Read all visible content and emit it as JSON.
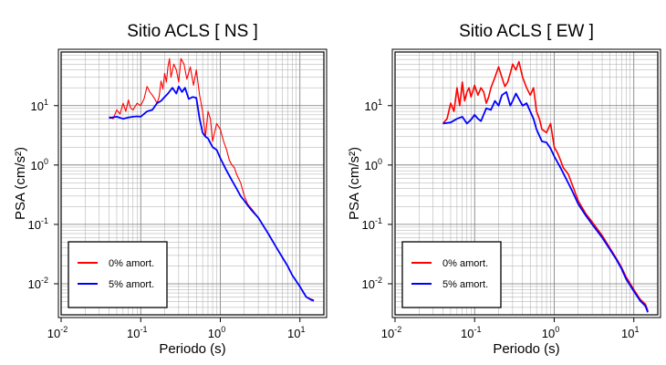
{
  "chart_data": [
    {
      "type": "line",
      "title": "Sitio ACLS [ NS ]",
      "xlabel": "Periodo (s)",
      "ylabel": "PSA (cm/s²)",
      "x_scale": "log",
      "y_scale": "log",
      "xlim": [
        0.01,
        20
      ],
      "ylim": [
        0.003,
        80
      ],
      "x_ticks": [
        {
          "base": "10",
          "exp": "-2"
        },
        {
          "base": "10",
          "exp": "-1"
        },
        {
          "base": "10",
          "exp": "0"
        },
        {
          "base": "10",
          "exp": "1"
        }
      ],
      "y_ticks": [
        {
          "base": "10",
          "exp": "-2"
        },
        {
          "base": "10",
          "exp": "-1"
        },
        {
          "base": "10",
          "exp": "0"
        },
        {
          "base": "10",
          "exp": "1"
        }
      ],
      "grid": true,
      "legend_position": "bottom-left",
      "series": [
        {
          "name": "0% amort.",
          "color": "#ff0000",
          "x": [
            0.04,
            0.045,
            0.05,
            0.055,
            0.06,
            0.065,
            0.07,
            0.075,
            0.08,
            0.09,
            0.1,
            0.11,
            0.12,
            0.13,
            0.14,
            0.15,
            0.16,
            0.17,
            0.18,
            0.19,
            0.2,
            0.21,
            0.22,
            0.23,
            0.24,
            0.26,
            0.28,
            0.3,
            0.32,
            0.35,
            0.38,
            0.42,
            0.46,
            0.5,
            0.55,
            0.6,
            0.65,
            0.7,
            0.75,
            0.8,
            0.9,
            1.0,
            1.1,
            1.2,
            1.3,
            1.4,
            1.5,
            1.6,
            1.8,
            2.0,
            2.2,
            2.5,
            3,
            4,
            5,
            6,
            7,
            8,
            10,
            12,
            14,
            15
          ],
          "y": [
            6.5,
            6.0,
            8.5,
            7.2,
            11.0,
            8.0,
            12.5,
            9.0,
            8.5,
            11.0,
            10.0,
            13.0,
            21.0,
            17.0,
            15.0,
            13.0,
            11.0,
            14.0,
            26.0,
            19.0,
            35.0,
            25.0,
            45.0,
            62.0,
            30.0,
            50.0,
            40.0,
            25.0,
            62.0,
            50.0,
            28.0,
            45.0,
            22.0,
            40.0,
            15.0,
            8.0,
            3.0,
            8.0,
            6.0,
            2.5,
            5.0,
            4.0,
            2.5,
            1.8,
            1.2,
            1.0,
            0.9,
            0.7,
            0.5,
            0.3,
            0.22,
            0.18,
            0.13,
            0.07,
            0.042,
            0.028,
            0.02,
            0.014,
            0.009,
            0.006,
            0.0055,
            0.0053
          ]
        },
        {
          "name": "5% amort.",
          "color": "#0000ff",
          "x": [
            0.04,
            0.05,
            0.06,
            0.07,
            0.08,
            0.09,
            0.1,
            0.12,
            0.14,
            0.16,
            0.18,
            0.2,
            0.22,
            0.25,
            0.28,
            0.3,
            0.33,
            0.36,
            0.4,
            0.45,
            0.5,
            0.55,
            0.6,
            0.65,
            0.7,
            0.8,
            0.9,
            1.0,
            1.2,
            1.4,
            1.6,
            1.8,
            2.0,
            2.2,
            2.5,
            3,
            4,
            5,
            6,
            7,
            8,
            10,
            12,
            14,
            15
          ],
          "y": [
            6.2,
            6.5,
            6.0,
            6.3,
            6.5,
            6.6,
            6.5,
            8.0,
            8.5,
            11.0,
            12.0,
            14.0,
            16.0,
            20.0,
            16.0,
            21.0,
            17.0,
            20.0,
            13.0,
            14.0,
            13.5,
            6.0,
            3.5,
            3.0,
            2.8,
            2.0,
            1.8,
            1.3,
            0.8,
            0.55,
            0.4,
            0.3,
            0.25,
            0.21,
            0.17,
            0.13,
            0.07,
            0.042,
            0.028,
            0.02,
            0.014,
            0.009,
            0.006,
            0.0053,
            0.0052
          ]
        }
      ]
    },
    {
      "type": "line",
      "title": "Sitio ACLS [ EW ]",
      "xlabel": "Periodo (s)",
      "ylabel": "PSA (cm/s²)",
      "x_scale": "log",
      "y_scale": "log",
      "xlim": [
        0.01,
        20
      ],
      "ylim": [
        0.003,
        80
      ],
      "x_ticks": [
        {
          "base": "10",
          "exp": "-2"
        },
        {
          "base": "10",
          "exp": "-1"
        },
        {
          "base": "10",
          "exp": "0"
        },
        {
          "base": "10",
          "exp": "1"
        }
      ],
      "y_ticks": [
        {
          "base": "10",
          "exp": "-2"
        },
        {
          "base": "10",
          "exp": "-1"
        },
        {
          "base": "10",
          "exp": "0"
        },
        {
          "base": "10",
          "exp": "1"
        }
      ],
      "grid": true,
      "legend_position": "bottom-left",
      "series": [
        {
          "name": "0% amort.",
          "color": "#ff0000",
          "x": [
            0.04,
            0.045,
            0.05,
            0.055,
            0.06,
            0.065,
            0.07,
            0.075,
            0.08,
            0.085,
            0.09,
            0.1,
            0.11,
            0.12,
            0.13,
            0.14,
            0.15,
            0.16,
            0.18,
            0.2,
            0.22,
            0.24,
            0.26,
            0.28,
            0.3,
            0.33,
            0.36,
            0.4,
            0.45,
            0.5,
            0.55,
            0.6,
            0.65,
            0.7,
            0.8,
            0.9,
            1.0,
            1.1,
            1.2,
            1.3,
            1.5,
            1.7,
            2.0,
            2.2,
            2.5,
            3,
            4,
            5,
            6,
            7,
            8,
            10,
            12,
            14,
            15
          ],
          "y": [
            5.0,
            6.0,
            11.0,
            8.0,
            20.0,
            10.0,
            25.0,
            12.0,
            17.0,
            20.0,
            14.0,
            22.0,
            15.0,
            20.0,
            17.0,
            11.0,
            14.0,
            20.0,
            30.0,
            45.0,
            30.0,
            21.0,
            25.0,
            35.0,
            50.0,
            40.0,
            55.0,
            30.0,
            20.0,
            15.0,
            20.0,
            8.0,
            6.0,
            4.0,
            3.5,
            5.0,
            2.0,
            1.6,
            1.2,
            0.9,
            0.7,
            0.45,
            0.25,
            0.2,
            0.15,
            0.11,
            0.065,
            0.04,
            0.027,
            0.019,
            0.013,
            0.008,
            0.0055,
            0.0045,
            0.0035
          ]
        },
        {
          "name": "5% amort.",
          "color": "#0000ff",
          "x": [
            0.04,
            0.05,
            0.06,
            0.07,
            0.08,
            0.09,
            0.1,
            0.11,
            0.12,
            0.14,
            0.16,
            0.18,
            0.2,
            0.22,
            0.25,
            0.28,
            0.3,
            0.33,
            0.36,
            0.4,
            0.45,
            0.5,
            0.55,
            0.6,
            0.7,
            0.8,
            0.9,
            1.0,
            1.2,
            1.4,
            1.6,
            1.8,
            2.0,
            2.5,
            3,
            4,
            5,
            6,
            7,
            8,
            10,
            12,
            14,
            15
          ],
          "y": [
            5.0,
            5.2,
            6.0,
            6.5,
            5.0,
            5.8,
            7.0,
            6.0,
            5.5,
            9.0,
            8.5,
            12.0,
            10.0,
            15.0,
            17.0,
            10.0,
            12.0,
            16.0,
            13.0,
            10.0,
            11.0,
            8.0,
            6.0,
            4.0,
            2.5,
            2.4,
            1.9,
            1.4,
            0.9,
            0.6,
            0.42,
            0.3,
            0.22,
            0.14,
            0.1,
            0.06,
            0.038,
            0.026,
            0.018,
            0.012,
            0.0075,
            0.0052,
            0.0042,
            0.0033
          ]
        }
      ]
    }
  ]
}
